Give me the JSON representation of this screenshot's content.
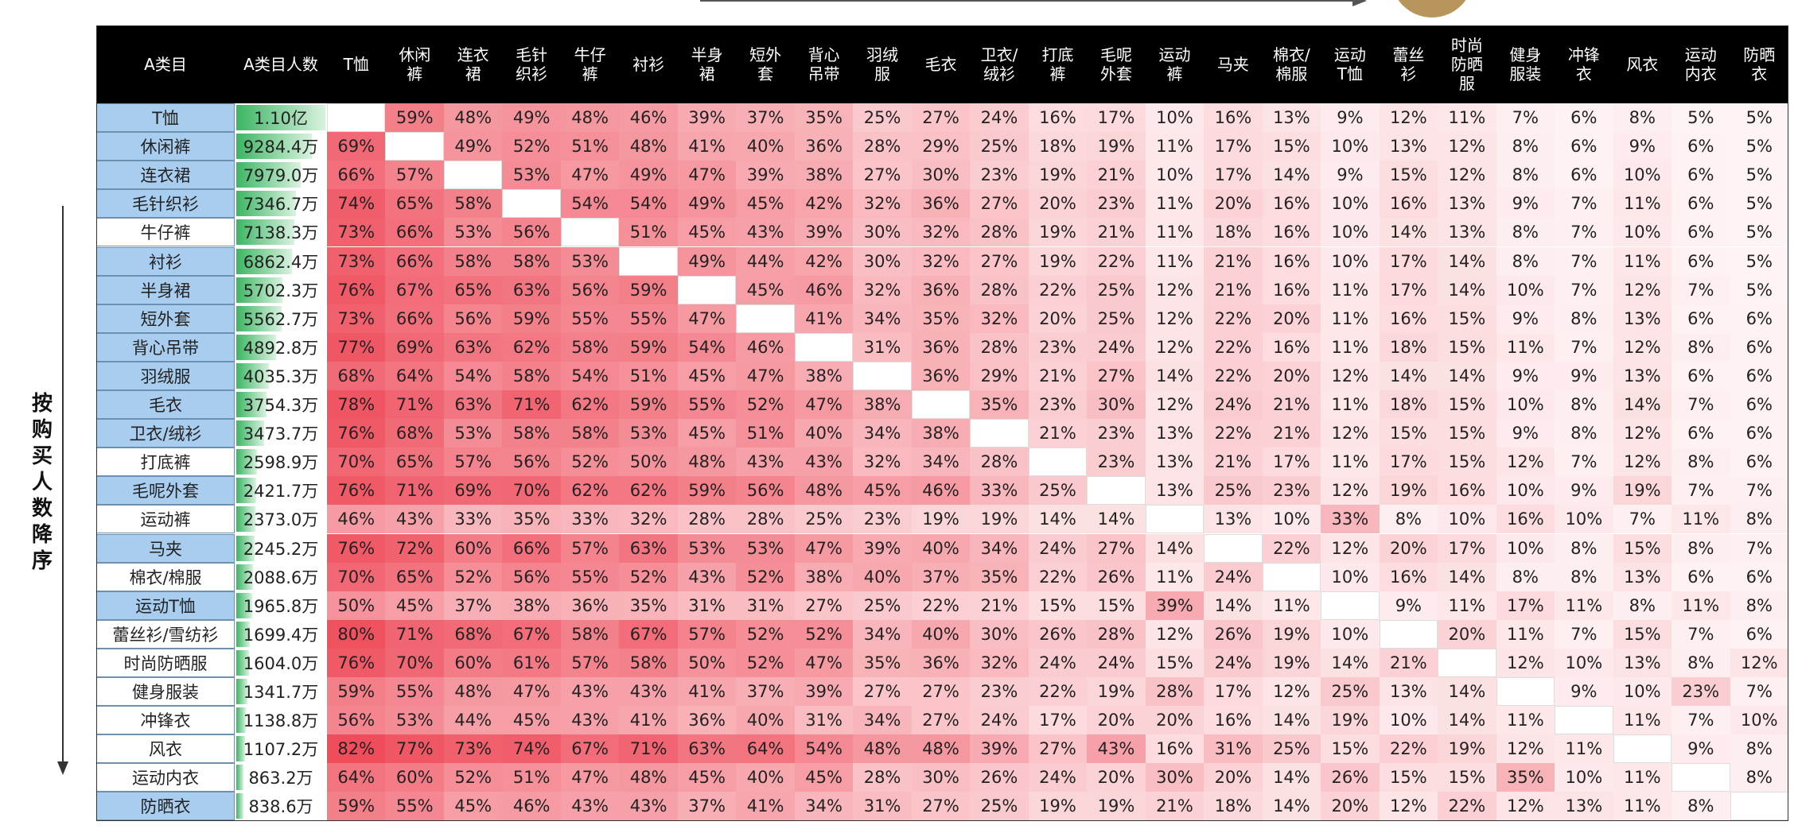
{
  "table": {
    "header": [
      "A类目",
      "A类目人数",
      "T恤",
      "休闲裤",
      "连衣裙",
      "毛针织衫",
      "牛仔裤",
      "衬衫",
      "半身裙",
      "短外套",
      "背心吊带",
      "羽绒服",
      "毛衣",
      "卫衣/绒衫",
      "打底裤",
      "毛呢外套",
      "运动裤",
      "马夹",
      "棉衣/棉服",
      "运动T恤",
      "蕾丝衫",
      "时尚防晒服",
      "健身服装",
      "冲锋衣",
      "风衣",
      "运动内衣",
      "防晒衣"
    ],
    "rows": [
      {
        "category": "T恤",
        "buyers": "1.10亿",
        "shares": [
          null,
          "59%",
          "48%",
          "49%",
          "48%",
          "46%",
          "39%",
          "37%",
          "35%",
          "25%",
          "27%",
          "24%",
          "16%",
          "17%",
          "10%",
          "16%",
          "13%",
          "9%",
          "12%",
          "11%",
          "7%",
          "6%",
          "8%",
          "5%",
          "5%"
        ]
      },
      {
        "category": "休闲裤",
        "buyers": "9284.4万",
        "shares": [
          "69%",
          null,
          "49%",
          "52%",
          "51%",
          "48%",
          "41%",
          "40%",
          "36%",
          "28%",
          "29%",
          "25%",
          "18%",
          "19%",
          "11%",
          "17%",
          "15%",
          "10%",
          "13%",
          "12%",
          "8%",
          "6%",
          "9%",
          "6%",
          "5%"
        ]
      },
      {
        "category": "连衣裙",
        "buyers": "7979.0万",
        "shares": [
          "66%",
          "57%",
          null,
          "53%",
          "47%",
          "49%",
          "47%",
          "39%",
          "38%",
          "27%",
          "30%",
          "23%",
          "19%",
          "21%",
          "10%",
          "17%",
          "14%",
          "9%",
          "15%",
          "12%",
          "8%",
          "6%",
          "10%",
          "6%",
          "5%"
        ]
      },
      {
        "category": "毛针织衫",
        "buyers": "7346.7万",
        "shares": [
          "74%",
          "65%",
          "58%",
          null,
          "54%",
          "54%",
          "49%",
          "45%",
          "42%",
          "32%",
          "36%",
          "27%",
          "20%",
          "23%",
          "11%",
          "20%",
          "16%",
          "10%",
          "16%",
          "13%",
          "9%",
          "7%",
          "11%",
          "6%",
          "5%"
        ]
      },
      {
        "category": "牛仔裤",
        "buyers": "7138.3万",
        "shares": [
          "73%",
          "66%",
          "53%",
          "56%",
          null,
          "51%",
          "45%",
          "43%",
          "39%",
          "30%",
          "32%",
          "28%",
          "19%",
          "21%",
          "11%",
          "18%",
          "16%",
          "10%",
          "14%",
          "13%",
          "8%",
          "7%",
          "10%",
          "6%",
          "5%"
        ]
      },
      {
        "category": "衬衫",
        "buyers": "6862.4万",
        "shares": [
          "73%",
          "66%",
          "58%",
          "58%",
          "53%",
          null,
          "49%",
          "44%",
          "42%",
          "30%",
          "32%",
          "27%",
          "19%",
          "22%",
          "11%",
          "21%",
          "16%",
          "10%",
          "17%",
          "14%",
          "8%",
          "7%",
          "11%",
          "6%",
          "5%"
        ]
      },
      {
        "category": "半身裙",
        "buyers": "5702.3万",
        "shares": [
          "76%",
          "67%",
          "65%",
          "63%",
          "56%",
          "59%",
          null,
          "45%",
          "46%",
          "32%",
          "36%",
          "28%",
          "22%",
          "25%",
          "12%",
          "21%",
          "16%",
          "11%",
          "17%",
          "14%",
          "10%",
          "7%",
          "12%",
          "7%",
          "5%"
        ]
      },
      {
        "category": "短外套",
        "buyers": "5562.7万",
        "shares": [
          "73%",
          "66%",
          "56%",
          "59%",
          "55%",
          "55%",
          "47%",
          null,
          "41%",
          "34%",
          "35%",
          "32%",
          "20%",
          "25%",
          "12%",
          "22%",
          "20%",
          "11%",
          "16%",
          "15%",
          "9%",
          "8%",
          "13%",
          "6%",
          "6%"
        ]
      },
      {
        "category": "背心吊带",
        "buyers": "4892.8万",
        "shares": [
          "77%",
          "69%",
          "63%",
          "62%",
          "58%",
          "59%",
          "54%",
          "46%",
          null,
          "31%",
          "36%",
          "28%",
          "23%",
          "24%",
          "12%",
          "22%",
          "16%",
          "11%",
          "18%",
          "15%",
          "11%",
          "7%",
          "12%",
          "8%",
          "6%"
        ]
      },
      {
        "category": "羽绒服",
        "buyers": "4035.3万",
        "shares": [
          "68%",
          "64%",
          "54%",
          "58%",
          "54%",
          "51%",
          "45%",
          "47%",
          "38%",
          null,
          "36%",
          "29%",
          "21%",
          "27%",
          "14%",
          "22%",
          "20%",
          "12%",
          "14%",
          "14%",
          "9%",
          "9%",
          "13%",
          "6%",
          "6%"
        ]
      },
      {
        "category": "毛衣",
        "buyers": "3754.3万",
        "shares": [
          "78%",
          "71%",
          "63%",
          "71%",
          "62%",
          "59%",
          "55%",
          "52%",
          "47%",
          "38%",
          null,
          "35%",
          "23%",
          "30%",
          "12%",
          "24%",
          "21%",
          "11%",
          "18%",
          "15%",
          "10%",
          "8%",
          "14%",
          "7%",
          "6%"
        ]
      },
      {
        "category": "卫衣/绒衫",
        "buyers": "3473.7万",
        "shares": [
          "76%",
          "68%",
          "53%",
          "58%",
          "58%",
          "53%",
          "45%",
          "51%",
          "40%",
          "34%",
          "38%",
          null,
          "21%",
          "23%",
          "13%",
          "22%",
          "21%",
          "12%",
          "15%",
          "15%",
          "9%",
          "8%",
          "12%",
          "6%",
          "6%"
        ]
      },
      {
        "category": "打底裤",
        "buyers": "2598.9万",
        "shares": [
          "70%",
          "65%",
          "57%",
          "56%",
          "52%",
          "50%",
          "48%",
          "43%",
          "43%",
          "32%",
          "34%",
          "28%",
          null,
          "23%",
          "13%",
          "21%",
          "17%",
          "11%",
          "17%",
          "15%",
          "12%",
          "7%",
          "12%",
          "8%",
          "6%"
        ]
      },
      {
        "category": "毛呢外套",
        "buyers": "2421.7万",
        "shares": [
          "76%",
          "71%",
          "69%",
          "70%",
          "62%",
          "62%",
          "59%",
          "56%",
          "48%",
          "45%",
          "46%",
          "33%",
          "25%",
          null,
          "13%",
          "25%",
          "23%",
          "12%",
          "19%",
          "16%",
          "10%",
          "9%",
          "19%",
          "7%",
          "7%"
        ]
      },
      {
        "category": "运动裤",
        "buyers": "2373.0万",
        "shares": [
          "46%",
          "43%",
          "33%",
          "35%",
          "33%",
          "32%",
          "28%",
          "28%",
          "25%",
          "23%",
          "19%",
          "19%",
          "14%",
          "14%",
          null,
          "13%",
          "10%",
          "33%",
          "8%",
          "10%",
          "16%",
          "10%",
          "7%",
          "11%",
          "8%"
        ]
      },
      {
        "category": "马夹",
        "buyers": "2245.2万",
        "shares": [
          "76%",
          "72%",
          "60%",
          "66%",
          "57%",
          "63%",
          "53%",
          "53%",
          "47%",
          "39%",
          "40%",
          "34%",
          "24%",
          "27%",
          "14%",
          null,
          "22%",
          "12%",
          "20%",
          "17%",
          "10%",
          "8%",
          "15%",
          "8%",
          "7%"
        ]
      },
      {
        "category": "棉衣/棉服",
        "buyers": "2088.6万",
        "shares": [
          "70%",
          "65%",
          "52%",
          "56%",
          "55%",
          "52%",
          "43%",
          "52%",
          "38%",
          "40%",
          "37%",
          "35%",
          "22%",
          "26%",
          "11%",
          "24%",
          null,
          "10%",
          "16%",
          "14%",
          "8%",
          "8%",
          "13%",
          "6%",
          "6%"
        ]
      },
      {
        "category": "运动T恤",
        "buyers": "1965.8万",
        "shares": [
          "50%",
          "45%",
          "37%",
          "38%",
          "36%",
          "35%",
          "31%",
          "31%",
          "27%",
          "25%",
          "22%",
          "21%",
          "15%",
          "15%",
          "39%",
          "14%",
          "11%",
          null,
          "9%",
          "11%",
          "17%",
          "11%",
          "8%",
          "11%",
          "8%"
        ]
      },
      {
        "category": "蕾丝衫/雪纺衫",
        "buyers": "1699.4万",
        "shares": [
          "80%",
          "71%",
          "68%",
          "67%",
          "58%",
          "67%",
          "57%",
          "52%",
          "52%",
          "34%",
          "40%",
          "30%",
          "26%",
          "28%",
          "12%",
          "26%",
          "19%",
          "10%",
          null,
          "20%",
          "11%",
          "7%",
          "15%",
          "7%",
          "6%"
        ]
      },
      {
        "category": "时尚防晒服",
        "buyers": "1604.0万",
        "shares": [
          "76%",
          "70%",
          "60%",
          "61%",
          "57%",
          "58%",
          "50%",
          "52%",
          "47%",
          "35%",
          "36%",
          "32%",
          "24%",
          "24%",
          "15%",
          "24%",
          "19%",
          "14%",
          "21%",
          null,
          "12%",
          "10%",
          "13%",
          "8%",
          "12%"
        ]
      },
      {
        "category": "健身服装",
        "buyers": "1341.7万",
        "shares": [
          "59%",
          "55%",
          "48%",
          "47%",
          "43%",
          "43%",
          "41%",
          "37%",
          "39%",
          "27%",
          "27%",
          "23%",
          "22%",
          "19%",
          "28%",
          "17%",
          "12%",
          "25%",
          "13%",
          "14%",
          null,
          "9%",
          "10%",
          "23%",
          "7%"
        ]
      },
      {
        "category": "冲锋衣",
        "buyers": "1138.8万",
        "shares": [
          "56%",
          "53%",
          "44%",
          "45%",
          "43%",
          "41%",
          "36%",
          "40%",
          "31%",
          "34%",
          "27%",
          "24%",
          "17%",
          "20%",
          "20%",
          "16%",
          "14%",
          "19%",
          "10%",
          "14%",
          "11%",
          null,
          "11%",
          "7%",
          "10%"
        ]
      },
      {
        "category": "风衣",
        "buyers": "1107.2万",
        "shares": [
          "82%",
          "77%",
          "73%",
          "74%",
          "67%",
          "71%",
          "63%",
          "64%",
          "54%",
          "48%",
          "48%",
          "39%",
          "27%",
          "43%",
          "16%",
          "31%",
          "25%",
          "15%",
          "22%",
          "19%",
          "12%",
          "11%",
          null,
          "9%",
          "8%"
        ]
      },
      {
        "category": "运动内衣",
        "buyers": "863.2万",
        "shares": [
          "64%",
          "60%",
          "52%",
          "51%",
          "47%",
          "48%",
          "45%",
          "40%",
          "45%",
          "28%",
          "30%",
          "26%",
          "24%",
          "20%",
          "30%",
          "20%",
          "14%",
          "26%",
          "15%",
          "15%",
          "35%",
          "10%",
          "11%",
          null,
          "8%"
        ]
      },
      {
        "category": "防晒衣",
        "buyers": "838.6万",
        "shares": [
          "59%",
          "55%",
          "45%",
          "46%",
          "43%",
          "43%",
          "37%",
          "41%",
          "34%",
          "31%",
          "27%",
          "25%",
          "19%",
          "19%",
          "21%",
          "18%",
          "14%",
          "20%",
          "12%",
          "22%",
          "12%",
          "13%",
          "11%",
          "8%",
          null
        ]
      }
    ]
  },
  "side_label": "按购买人数降序"
}
